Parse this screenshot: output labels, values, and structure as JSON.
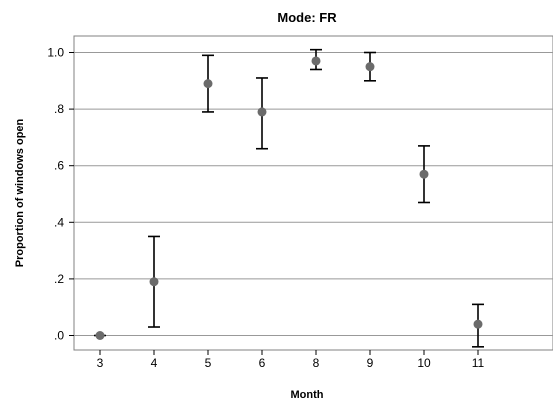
{
  "chart_data": {
    "type": "scatter",
    "title": "Mode: FR",
    "xlabel": "Month",
    "ylabel": "Proportion of windows open",
    "categories": [
      "3",
      "4",
      "5",
      "6",
      "8",
      "9",
      "10",
      "11"
    ],
    "values": [
      0.0,
      0.19,
      0.89,
      0.79,
      0.97,
      0.95,
      0.57,
      0.04
    ],
    "error_low": [
      0.0,
      0.03,
      0.79,
      0.66,
      0.94,
      0.9,
      0.47,
      -0.04
    ],
    "error_high": [
      0.0,
      0.35,
      0.99,
      0.91,
      1.01,
      1.0,
      0.67,
      0.11
    ],
    "ylim": [
      -0.06,
      1.06
    ],
    "y_ticks": [
      0.0,
      0.2,
      0.4,
      0.6,
      0.8,
      1.0
    ],
    "y_tick_labels": [
      ".0",
      ".2",
      ".4",
      ".6",
      ".8",
      "1.0"
    ],
    "grid": "horizontal",
    "colors": {
      "point": "#6b6b6b",
      "error_bar": "#000000",
      "grid": "#999999",
      "frame": "#808080"
    }
  }
}
